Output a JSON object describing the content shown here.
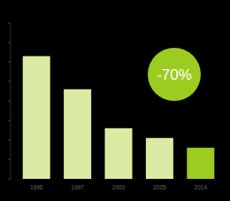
{
  "chart_data": {
    "type": "bar",
    "categories": [
      "1996",
      "1997",
      "2000",
      "2005",
      "2014"
    ],
    "values": [
      6.3,
      4.6,
      2.6,
      2.1,
      1.6
    ],
    "colors": [
      "#d9eba3",
      "#d9eba3",
      "#d9eba3",
      "#d9eba3",
      "#9ccc1f"
    ],
    "ylim": [
      0,
      8
    ],
    "yticks": [
      0,
      1,
      2,
      3,
      4,
      5,
      6,
      7,
      8
    ],
    "grid": false,
    "tick_labels": "x",
    "annotation": "-70%"
  }
}
